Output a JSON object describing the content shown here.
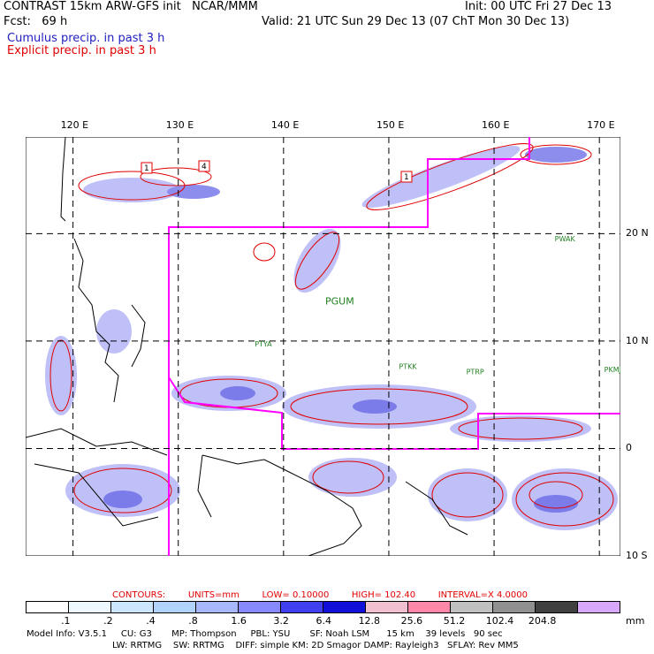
{
  "header": {
    "title_left": "CONTRAST 15km ARW-GFS init   NCAR/MMM",
    "fcst_label": "Fcst:   69 h",
    "init": "Init: 00 UTC Fri 27 Dec 13",
    "valid": "Valid: 21 UTC Sun 29 Dec 13 (07 ChT Mon 30 Dec 13)",
    "cumulus": "Cumulus precip. in past 3 h",
    "explicit": "Explicit precip. in past 3 h"
  },
  "map": {
    "lon_labels": [
      "120 E",
      "130 E",
      "140 E",
      "150 E",
      "160 E",
      "170 E"
    ],
    "lon_values": [
      120,
      130,
      140,
      150,
      160,
      170
    ],
    "lat_labels": [
      "20 N",
      "10 N",
      "0",
      "10 S"
    ],
    "lat_values": [
      20,
      10,
      0,
      -10
    ],
    "lon_range": [
      115.5,
      172
    ],
    "lat_range": [
      -10,
      29
    ],
    "stations": [
      {
        "name": "PGUM",
        "lon": 144.8,
        "lat": 13.4
      },
      {
        "name": "PTYA",
        "lon": 138.1,
        "lat": 9.5
      },
      {
        "name": "PTKK",
        "lon": 151.8,
        "lat": 7.4
      },
      {
        "name": "PTRP",
        "lon": 158.2,
        "lat": 6.9
      },
      {
        "name": "PKMJ",
        "lon": 171.3,
        "lat": 7.1
      },
      {
        "name": "PWAK",
        "lon": 166.6,
        "lat": 19.3
      }
    ],
    "colors": {
      "grid": "#000000",
      "boundary": "#ff00ff",
      "contour": "#e00000",
      "coast": "#000000",
      "station": "#208020"
    },
    "max_markers": [
      "1",
      "4",
      "1"
    ]
  },
  "contour_info": {
    "contours": "CONTOURS:",
    "units": "UNITS=mm",
    "low": "LOW=  0.10000",
    "high": "HIGH=  102.40",
    "interval": "INTERVAL=X  4.0000"
  },
  "legend": {
    "colors": [
      "#ffffff",
      "#eef8ff",
      "#cce6ff",
      "#b0d4ff",
      "#a8b8ff",
      "#8888ff",
      "#4040f0",
      "#1010d8",
      "#f0c0d0",
      "#ff88a8",
      "#c0c0c0",
      "#909090",
      "#404040",
      "#d8a8ff"
    ],
    "labels": [
      ".1",
      ".2",
      ".4",
      ".8",
      "1.6",
      "3.2",
      "6.4",
      "12.8",
      "25.6",
      "51.2",
      "102.4",
      "204.8"
    ],
    "unit": "mm"
  },
  "footer": {
    "line1": "Model Info: V3.5.1     CU: G3       MP: Thompson     PBL: YSU       SF: Noah LSM      15 km    39 levels   90 sec",
    "line2": "LW: RRTMG    SW: RRTMG    DIFF: simple KM: 2D Smagor DAMP: Rayleigh3   SFLAY: Rev MM5"
  }
}
